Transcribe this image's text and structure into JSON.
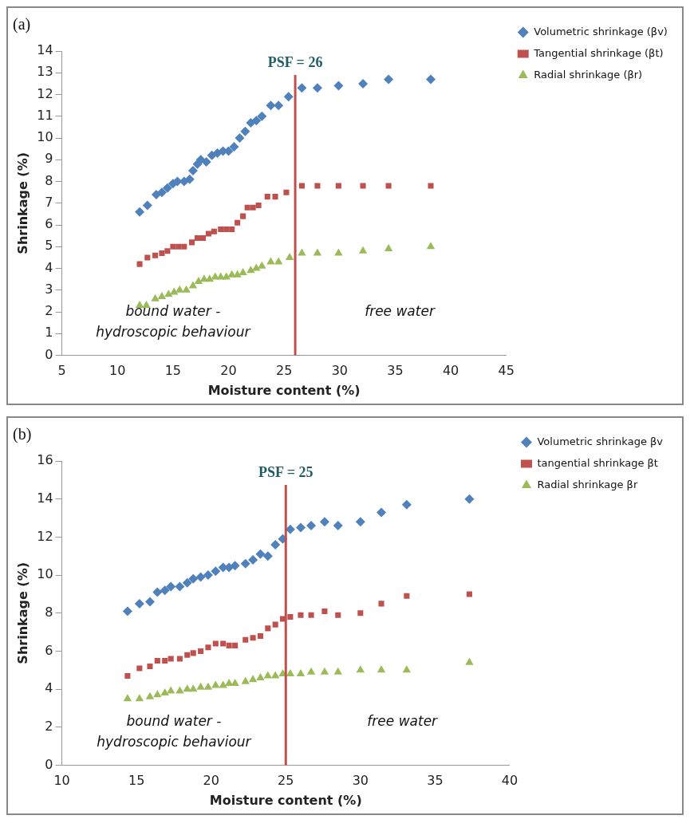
{
  "chart_data": [
    {
      "type": "scatter",
      "title": "(a)",
      "xlabel": "Moisture content (%)",
      "ylabel": "Shrinkage (%)",
      "xlim": [
        5,
        45
      ],
      "xticks": [
        5,
        10,
        15,
        20,
        25,
        30,
        35,
        40,
        45
      ],
      "ylim": [
        0,
        14
      ],
      "yticks": [
        0,
        1,
        2,
        3,
        4,
        5,
        6,
        7,
        8,
        9,
        10,
        11,
        12,
        13,
        14
      ],
      "grid": false,
      "legend": "top right",
      "ref_lines": [
        {
          "axis": "x",
          "value": 26,
          "label": "PSF = 26",
          "color": "#c0504d"
        }
      ],
      "annotations": [
        "bound water - hydroscopic behaviour",
        "free water"
      ],
      "series": [
        {
          "name": "Volumetric shrinkage (βv)",
          "color": "#4f81bd",
          "marker": "diamond",
          "x": [
            12,
            12.7,
            13.5,
            14,
            14.5,
            15,
            15.4,
            16,
            16.5,
            16.8,
            17.2,
            17.5,
            18,
            18.5,
            19,
            19.5,
            20,
            20.5,
            21,
            21.5,
            22,
            22.5,
            23,
            23.8,
            24.5,
            25.4,
            26.6,
            28,
            29.9,
            32.1,
            34.4,
            38.2
          ],
          "values": [
            6.6,
            6.9,
            7.4,
            7.5,
            7.7,
            7.9,
            8.0,
            8.0,
            8.1,
            8.5,
            8.8,
            9.0,
            8.9,
            9.2,
            9.3,
            9.4,
            9.4,
            9.6,
            10.0,
            10.3,
            10.7,
            10.8,
            11.0,
            11.5,
            11.5,
            11.9,
            12.3,
            12.3,
            12.4,
            12.5,
            12.7,
            12.7
          ]
        },
        {
          "name": "Tangential shrinkage (βt)",
          "color": "#c0504d",
          "marker": "square",
          "x": [
            12,
            12.7,
            13.4,
            14,
            14.5,
            15,
            15.5,
            16,
            16.7,
            17.2,
            17.7,
            18.2,
            18.7,
            19.3,
            19.8,
            20.3,
            20.8,
            21.3,
            21.7,
            22.2,
            22.7,
            23.5,
            24.2,
            25.2,
            26.6,
            28,
            29.9,
            32.1,
            34.4,
            38.2
          ],
          "values": [
            4.2,
            4.5,
            4.6,
            4.7,
            4.8,
            5.0,
            5.0,
            5.0,
            5.2,
            5.4,
            5.4,
            5.6,
            5.7,
            5.8,
            5.8,
            5.8,
            6.1,
            6.4,
            6.8,
            6.8,
            6.9,
            7.3,
            7.3,
            7.5,
            7.8,
            7.8,
            7.8,
            7.8,
            7.8,
            7.8
          ]
        },
        {
          "name": "Radial shrinkage (βr)",
          "color": "#9bbb59",
          "marker": "triangle",
          "x": [
            12,
            12.6,
            13.4,
            14,
            14.6,
            15.1,
            15.6,
            16.2,
            16.8,
            17.3,
            17.8,
            18.3,
            18.8,
            19.3,
            19.8,
            20.3,
            20.8,
            21.3,
            22,
            22.5,
            23,
            23.8,
            24.5,
            25.5,
            26.6,
            28,
            29.9,
            32.1,
            34.4,
            38.2
          ],
          "values": [
            2.3,
            2.3,
            2.6,
            2.7,
            2.8,
            2.9,
            3.0,
            3.0,
            3.2,
            3.4,
            3.5,
            3.5,
            3.6,
            3.6,
            3.6,
            3.7,
            3.7,
            3.8,
            3.9,
            4.0,
            4.1,
            4.3,
            4.3,
            4.5,
            4.7,
            4.7,
            4.7,
            4.8,
            4.9,
            5.0
          ]
        }
      ]
    },
    {
      "type": "scatter",
      "title": "(b)",
      "xlabel": "Moisture content (%)",
      "ylabel": "Shrinkage (%)",
      "xlim": [
        10,
        40
      ],
      "xticks": [
        10,
        15,
        20,
        25,
        30,
        35,
        40
      ],
      "ylim": [
        0,
        16
      ],
      "yticks": [
        0,
        2,
        4,
        6,
        8,
        10,
        12,
        14,
        16
      ],
      "grid": false,
      "legend": "top right",
      "ref_lines": [
        {
          "axis": "x",
          "value": 25,
          "label": "PSF = 25",
          "color": "#c0504d"
        }
      ],
      "annotations": [
        "bound water - hydroscopic behaviour",
        "free water"
      ],
      "series": [
        {
          "name": "Volumetric shrinkage βv",
          "color": "#4f81bd",
          "marker": "diamond",
          "x": [
            14.4,
            15.2,
            15.9,
            16.4,
            16.9,
            17.3,
            17.9,
            18.4,
            18.8,
            19.3,
            19.8,
            20.3,
            20.8,
            21.2,
            21.6,
            22.3,
            22.8,
            23.3,
            23.8,
            24.3,
            24.8,
            25.3,
            26,
            26.7,
            27.6,
            28.5,
            30,
            31.4,
            33.1,
            37.3
          ],
          "values": [
            8.1,
            8.5,
            8.6,
            9.1,
            9.2,
            9.4,
            9.4,
            9.6,
            9.8,
            9.9,
            10.0,
            10.2,
            10.4,
            10.4,
            10.5,
            10.6,
            10.8,
            11.1,
            11.0,
            11.6,
            11.9,
            12.4,
            12.5,
            12.6,
            12.8,
            12.6,
            12.8,
            13.3,
            13.7,
            14.0
          ]
        },
        {
          "name": "tangential shrinkage βt",
          "color": "#c0504d",
          "marker": "square",
          "x": [
            14.4,
            15.2,
            15.9,
            16.4,
            16.9,
            17.3,
            17.9,
            18.4,
            18.8,
            19.3,
            19.8,
            20.3,
            20.8,
            21.2,
            21.6,
            22.3,
            22.8,
            23.3,
            23.8,
            24.3,
            24.8,
            25.3,
            26,
            26.7,
            27.6,
            28.5,
            30,
            31.4,
            33.1,
            37.3
          ],
          "values": [
            4.7,
            5.1,
            5.2,
            5.5,
            5.5,
            5.6,
            5.6,
            5.8,
            5.9,
            6.0,
            6.2,
            6.4,
            6.4,
            6.3,
            6.3,
            6.6,
            6.7,
            6.8,
            7.2,
            7.4,
            7.7,
            7.8,
            7.9,
            7.9,
            8.1,
            7.9,
            8.0,
            8.5,
            8.9,
            9.0
          ]
        },
        {
          "name": "Radial shrinkage βr",
          "color": "#9bbb59",
          "marker": "triangle",
          "x": [
            14.4,
            15.2,
            15.9,
            16.4,
            16.9,
            17.3,
            17.9,
            18.4,
            18.8,
            19.3,
            19.8,
            20.3,
            20.8,
            21.2,
            21.6,
            22.3,
            22.8,
            23.3,
            23.8,
            24.3,
            24.8,
            25.3,
            26,
            26.7,
            27.6,
            28.5,
            30,
            31.4,
            33.1,
            37.3
          ],
          "values": [
            3.5,
            3.5,
            3.6,
            3.7,
            3.8,
            3.9,
            3.9,
            4.0,
            4.0,
            4.1,
            4.1,
            4.2,
            4.2,
            4.3,
            4.3,
            4.4,
            4.5,
            4.6,
            4.7,
            4.7,
            4.8,
            4.8,
            4.8,
            4.9,
            4.9,
            4.9,
            5.0,
            5.0,
            5.0,
            5.4
          ]
        }
      ]
    }
  ]
}
